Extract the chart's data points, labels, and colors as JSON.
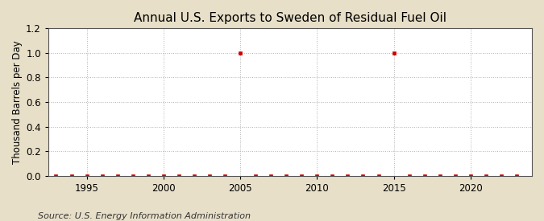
{
  "title": "Annual U.S. Exports to Sweden of Residual Fuel Oil",
  "ylabel": "Thousand Barrels per Day",
  "source": "Source: U.S. Energy Information Administration",
  "xlim": [
    1992.5,
    2024
  ],
  "ylim": [
    0.0,
    1.2
  ],
  "yticks": [
    0.0,
    0.2,
    0.4,
    0.6,
    0.8,
    1.0,
    1.2
  ],
  "xticks": [
    1995,
    2000,
    2005,
    2010,
    2015,
    2020
  ],
  "figure_background_color": "#e8dfc8",
  "axes_background_color": "#ffffff",
  "grid_color": "#aaaaaa",
  "marker_color": "#cc0000",
  "marker": "s",
  "marker_size": 3.5,
  "years": [
    1993,
    1994,
    1995,
    1996,
    1997,
    1998,
    1999,
    2000,
    2001,
    2002,
    2003,
    2004,
    2005,
    2006,
    2007,
    2008,
    2009,
    2010,
    2011,
    2012,
    2013,
    2014,
    2015,
    2016,
    2017,
    2018,
    2019,
    2020,
    2021,
    2022,
    2023
  ],
  "values": [
    0.0,
    0.0,
    0.0,
    0.0,
    0.0,
    0.0,
    0.0,
    0.0,
    0.0,
    0.0,
    0.0,
    0.0,
    1.0,
    0.0,
    0.0,
    0.0,
    0.0,
    0.0,
    0.0,
    0.0,
    0.0,
    0.0,
    1.0,
    0.0,
    0.0,
    0.0,
    0.0,
    0.0,
    0.0,
    0.0,
    0.0
  ],
  "title_fontsize": 11,
  "ylabel_fontsize": 8.5,
  "tick_fontsize": 8.5,
  "source_fontsize": 8
}
